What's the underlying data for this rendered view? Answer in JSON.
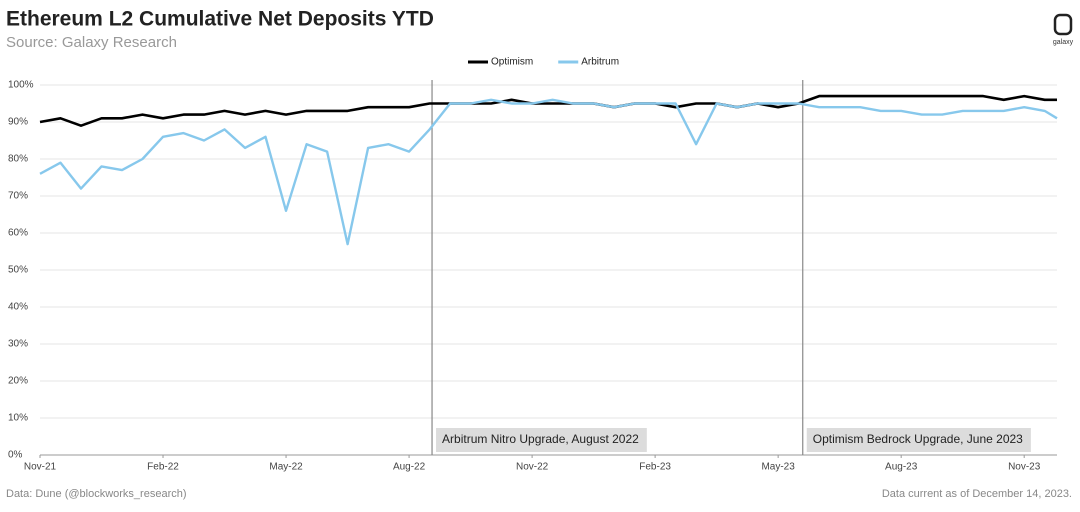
{
  "chart_data": {
    "type": "line",
    "title": "Ethereum L2 Cumulative Net Deposits YTD",
    "subtitle": "Source: Galaxy Research",
    "footer_left": "Data: Dune (@blockworks_research)",
    "footer_right": "Data current as of December 14, 2023.",
    "logo": "galaxy",
    "x": [
      0,
      0.5,
      1,
      1.5,
      2,
      2.5,
      3,
      3.5,
      4,
      4.5,
      5,
      5.5,
      6,
      6.5,
      7,
      7.5,
      8,
      8.5,
      9,
      9.5,
      10,
      10.5,
      11,
      11.5,
      12,
      12.5,
      13,
      13.5,
      14,
      14.5,
      15,
      15.5,
      16,
      16.5,
      17,
      17.5,
      18,
      18.5,
      19,
      19.5,
      20,
      20.5,
      21,
      21.5,
      22,
      22.5,
      23,
      23.5,
      24,
      24.5,
      24.8
    ],
    "series": [
      {
        "name": "Optimism",
        "color": "#000000",
        "values": [
          90,
          91,
          89,
          91,
          91,
          92,
          91,
          92,
          92,
          93,
          92,
          93,
          92,
          93,
          93,
          93,
          94,
          94,
          94,
          95,
          95,
          95,
          95,
          96,
          95,
          95,
          95,
          95,
          94,
          95,
          95,
          94,
          95,
          95,
          94,
          95,
          94,
          95,
          97,
          97,
          97,
          97,
          97,
          97,
          97,
          97,
          97,
          96,
          97,
          96,
          96
        ]
      },
      {
        "name": "Arbitrum",
        "color": "#87c8ec",
        "values": [
          76,
          79,
          72,
          78,
          77,
          80,
          86,
          87,
          85,
          88,
          83,
          86,
          66,
          84,
          82,
          57,
          83,
          84,
          82,
          88,
          95,
          95,
          96,
          95,
          95,
          96,
          95,
          95,
          94,
          95,
          95,
          95,
          84,
          95,
          94,
          95,
          95,
          95,
          94,
          94,
          94,
          93,
          93,
          92,
          92,
          93,
          93,
          93,
          94,
          93,
          91
        ]
      }
    ],
    "xlim": [
      0,
      24.8
    ],
    "xticks": [
      {
        "value": 0,
        "label": "Nov-21"
      },
      {
        "value": 3,
        "label": "Feb-22"
      },
      {
        "value": 6,
        "label": "May-22"
      },
      {
        "value": 9,
        "label": "Aug-22"
      },
      {
        "value": 12,
        "label": "Nov-22"
      },
      {
        "value": 15,
        "label": "Feb-23"
      },
      {
        "value": 18,
        "label": "May-23"
      },
      {
        "value": 21,
        "label": "Aug-23"
      },
      {
        "value": 24,
        "label": "Nov-23"
      }
    ],
    "ylim": [
      0,
      100
    ],
    "yticks": [
      {
        "value": 0,
        "label": "0%"
      },
      {
        "value": 10,
        "label": "10%"
      },
      {
        "value": 20,
        "label": "20%"
      },
      {
        "value": 30,
        "label": "30%"
      },
      {
        "value": 40,
        "label": "40%"
      },
      {
        "value": 50,
        "label": "50%"
      },
      {
        "value": 60,
        "label": "60%"
      },
      {
        "value": 70,
        "label": "70%"
      },
      {
        "value": 80,
        "label": "80%"
      },
      {
        "value": 90,
        "label": "90%"
      },
      {
        "value": 100,
        "label": "100%"
      }
    ],
    "grid": true,
    "annotations": [
      {
        "x": 9.56,
        "label": "Arbitrum Nitro Upgrade, August 2022"
      },
      {
        "x": 18.6,
        "label": "Optimism Bedrock Upgrade, June 2023"
      }
    ]
  }
}
